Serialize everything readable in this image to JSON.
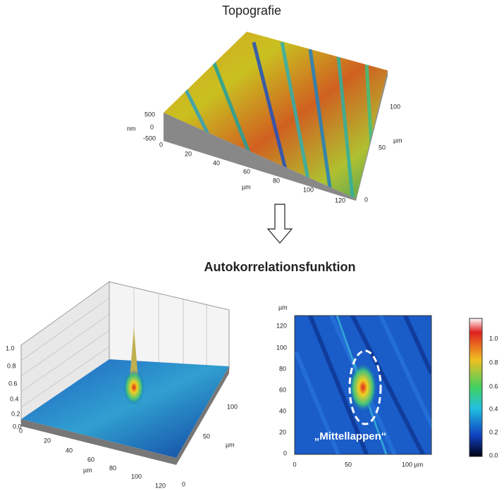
{
  "top": {
    "title": "Topografie",
    "z_unit": "nm",
    "z_ticks": [
      "500",
      "0",
      "-500"
    ],
    "x_ticks": [
      "0",
      "20",
      "40",
      "60",
      "80",
      "100",
      "120"
    ],
    "x_unit": "µm",
    "y_ticks": [
      "0",
      "50",
      "100"
    ],
    "y_unit": "µm"
  },
  "bottom_title": "Autokorrelationsfunktion",
  "acf3d": {
    "z_ticks": [
      "1.0",
      "0.8",
      "0.6",
      "0.4",
      "0.2",
      "0.0"
    ],
    "x_ticks": [
      "0",
      "20",
      "40",
      "60",
      "80",
      "100",
      "120"
    ],
    "x_unit": "µm",
    "y_ticks": [
      "0",
      "50",
      "100"
    ],
    "y_unit": "µm"
  },
  "map": {
    "y_unit": "µm",
    "y_ticks": [
      "120",
      "100",
      "80",
      "60",
      "40",
      "20",
      "0"
    ],
    "x_ticks": [
      "0",
      "50",
      "100 µm"
    ],
    "annotation": "„Mittellappen“",
    "colorbar_ticks": [
      "1.0",
      "0.8",
      "0.6",
      "0.4",
      "0.2",
      "0.0"
    ]
  }
}
